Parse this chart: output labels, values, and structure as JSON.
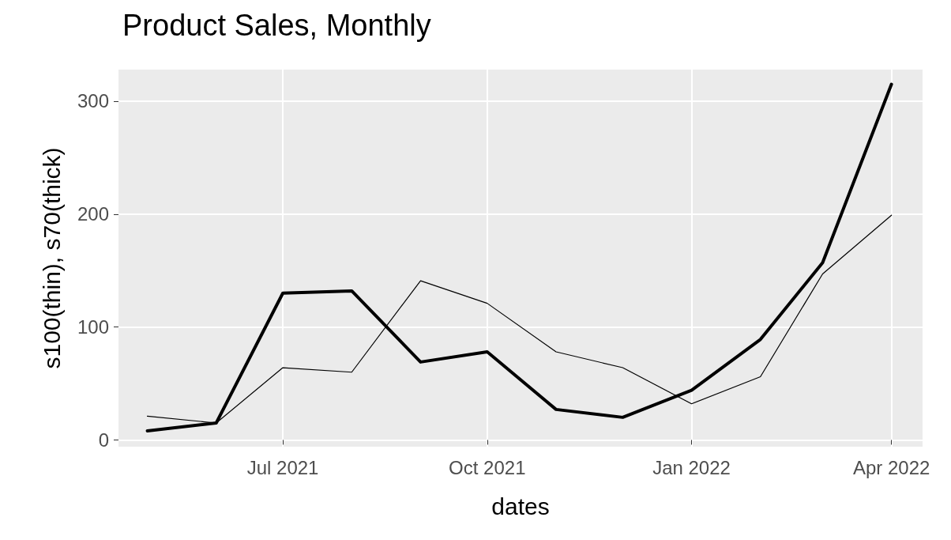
{
  "chart_data": {
    "type": "line",
    "title": "Product Sales, Monthly",
    "xlabel": "dates",
    "ylabel": "s100(thin), s70(thick)",
    "x": [
      "2021-05-01",
      "2021-06-01",
      "2021-07-01",
      "2021-08-01",
      "2021-09-01",
      "2021-10-01",
      "2021-11-01",
      "2021-12-01",
      "2022-01-01",
      "2022-02-01",
      "2022-03-01",
      "2022-04-01"
    ],
    "series": [
      {
        "color": "#000000",
        "values": [
          21,
          15,
          64,
          60,
          141,
          121,
          78,
          64,
          32,
          56,
          147,
          199
        ]
      },
      {
        "color": "#000000",
        "values": [
          8,
          15,
          130,
          132,
          69,
          78,
          27,
          20,
          44,
          89,
          157,
          315
        ]
      }
    ],
    "xlim": [
      "2021-04-18",
      "2022-04-15"
    ],
    "xticks": [
      {
        "value": "2021-07-01",
        "label": "Jul 2021"
      },
      {
        "value": "2021-10-01",
        "label": "Oct 2021"
      },
      {
        "value": "2022-01-01",
        "label": "Jan 2022"
      },
      {
        "value": "2022-04-01",
        "label": "Apr 2022"
      }
    ],
    "ylim": [
      -6,
      328
    ],
    "yticks": [
      0,
      100,
      200,
      300
    ],
    "grid": true,
    "marker": "none",
    "line_style": "solid"
  }
}
